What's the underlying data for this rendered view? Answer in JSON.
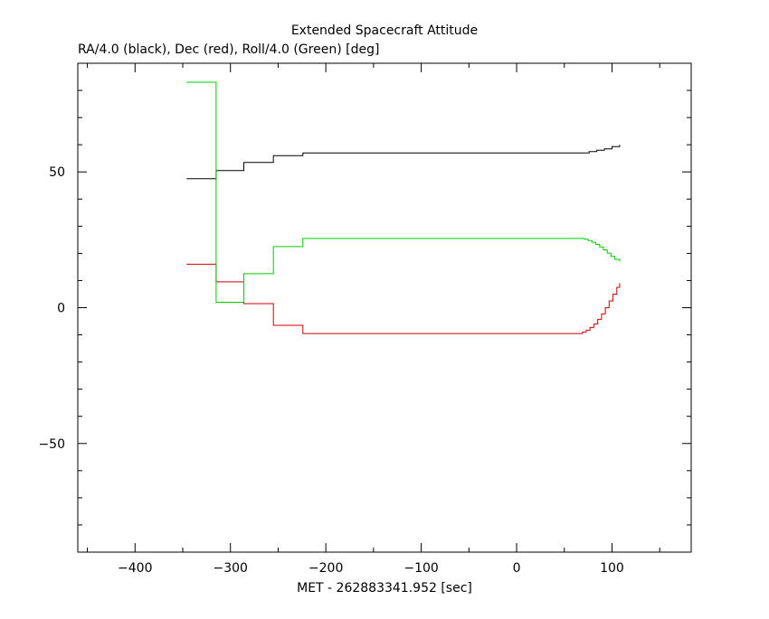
{
  "chart_data": {
    "type": "line",
    "title": "Extended Spacecraft Attitude",
    "subtitle": "RA/4.0 (black), Dec (red), Roll/4.0 (Green) [deg]",
    "xlabel": "MET - 262883341.952 [sec]",
    "ylabel": "",
    "xlim": [
      -460,
      183
    ],
    "ylim": [
      -90,
      90
    ],
    "x_ticks": [
      -400,
      -300,
      -200,
      -100,
      0,
      100
    ],
    "y_ticks": [
      -50,
      0,
      50
    ],
    "x_tick_labels": [
      "−400",
      "−300",
      "−200",
      "−100",
      "0",
      "100"
    ],
    "y_tick_labels": [
      "−50",
      "0",
      "50"
    ],
    "grid": false,
    "legend": "none",
    "step": true,
    "series": [
      {
        "color": "#000000",
        "x": [
          -346,
          -315,
          -286,
          -255,
          -224,
          -100,
          0,
          60,
          76,
          84,
          92,
          100,
          108
        ],
        "y": [
          47.5,
          50.5,
          53.5,
          56,
          57,
          57,
          57,
          57,
          57.5,
          58,
          58.5,
          59.3,
          60
        ]
      },
      {
        "color": "#cc0000",
        "x": [
          -346,
          -315,
          -286,
          -255,
          -224,
          -100,
          0,
          65,
          69,
          73,
          77,
          81,
          85,
          89,
          93,
          97,
          101,
          105,
          108
        ],
        "y": [
          16,
          9.5,
          1.5,
          -6.5,
          -9.5,
          -9.5,
          -9.5,
          -9.5,
          -9,
          -8.3,
          -7.3,
          -6,
          -4.3,
          -2.3,
          0,
          2.5,
          5,
          7.5,
          9
        ]
      },
      {
        "color": "#00cc00",
        "x": [
          -346,
          -315,
          -286,
          -255,
          -224,
          -100,
          0,
          67,
          71,
          75,
          79,
          83,
          87,
          91,
          95,
          99,
          103,
          108
        ],
        "y": [
          83,
          2,
          12.5,
          22.5,
          25.5,
          25.5,
          25.5,
          25.5,
          25.2,
          24.7,
          24.1,
          23.3,
          22.4,
          21.3,
          20.1,
          18.9,
          17.8,
          17
        ]
      }
    ]
  }
}
